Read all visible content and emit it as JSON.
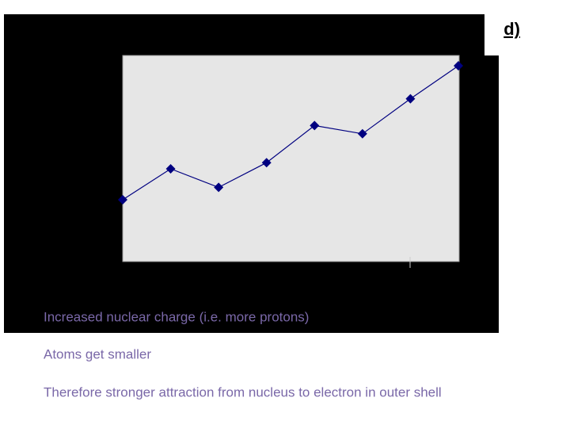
{
  "chart_data": {
    "type": "line",
    "title": "d)",
    "categories": [
      null,
      null,
      null,
      null,
      null,
      null,
      null,
      null
    ],
    "series": [
      {
        "color": "#000080",
        "values": [
          30,
          45,
          36,
          48,
          66,
          62,
          79,
          95
        ]
      }
    ],
    "ylim": [
      0,
      100
    ]
  },
  "text_lines": [
    "Increased nuclear charge (i.e. more protons)",
    "Atoms get smaller",
    "Therefore stronger attraction from nucleus to electron in outer shell"
  ]
}
